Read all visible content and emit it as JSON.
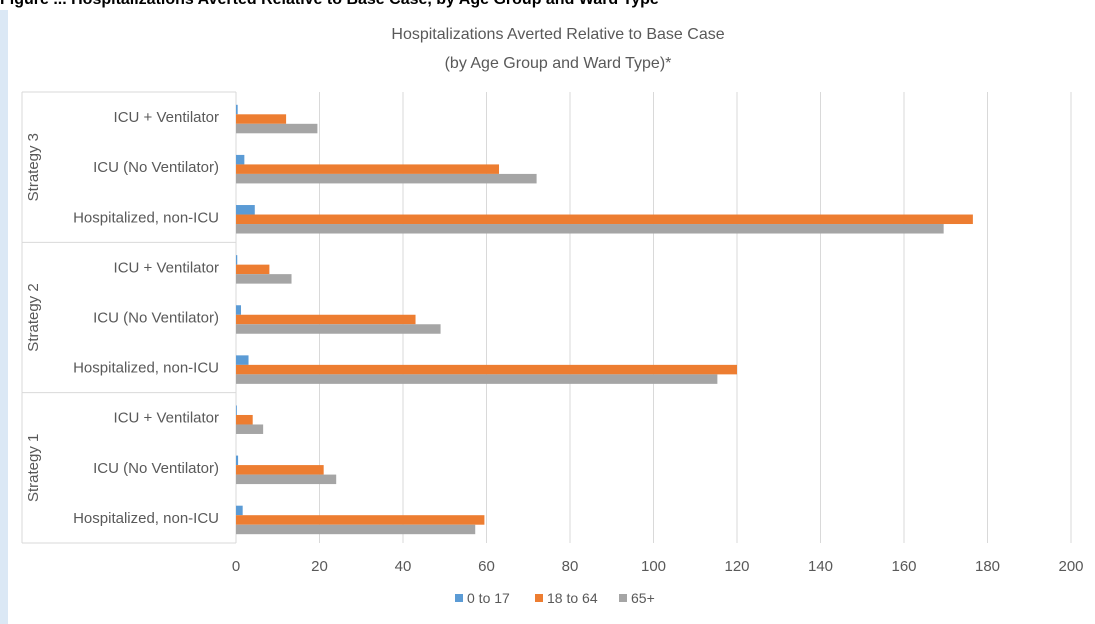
{
  "figure_caption_fragment": "Figure ... Hospitalizations Averted Relative to Base Case, by Age Group and Ward Type",
  "colors": {
    "series_0_to_17": "#5b9bd5",
    "series_18_to_64": "#ed7d31",
    "series_65_plus": "#a5a5a5",
    "grid": "#d9d9d9",
    "text": "#595959"
  },
  "chart_data": {
    "type": "bar",
    "orientation": "horizontal",
    "title": "Hospitalizations Averted Relative to Base Case",
    "subtitle": "(by Age Group and Ward Type)*",
    "xlim": [
      0,
      200
    ],
    "x_ticks": [
      0,
      20,
      40,
      60,
      80,
      100,
      120,
      140,
      160,
      180,
      200
    ],
    "grid": true,
    "legend_position": "bottom",
    "groups": [
      {
        "name": "Strategy 3",
        "categories": [
          {
            "label": "ICU + Ventilator",
            "values": [
              0.4,
              12,
              19.5
            ]
          },
          {
            "label": "ICU (No Ventilator)",
            "values": [
              2,
              63,
              72
            ]
          },
          {
            "label": "Hospitalized, non-ICU",
            "values": [
              4.5,
              176.5,
              169.5
            ]
          }
        ]
      },
      {
        "name": "Strategy 2",
        "categories": [
          {
            "label": "ICU + Ventilator",
            "values": [
              0.3,
              8,
              13.3
            ]
          },
          {
            "label": "ICU (No Ventilator)",
            "values": [
              1.2,
              43,
              49
            ]
          },
          {
            "label": "Hospitalized, non-ICU",
            "values": [
              3,
              120,
              115.3
            ]
          }
        ]
      },
      {
        "name": "Strategy 1",
        "categories": [
          {
            "label": "ICU + Ventilator",
            "values": [
              0.2,
              4,
              6.5
            ]
          },
          {
            "label": "ICU (No Ventilator)",
            "values": [
              0.5,
              21,
              24
            ]
          },
          {
            "label": "Hospitalized, non-ICU",
            "values": [
              1.6,
              59.5,
              57.3
            ]
          }
        ]
      }
    ],
    "series": [
      {
        "name": "0 to 17"
      },
      {
        "name": "18 to 64"
      },
      {
        "name": "65+"
      }
    ]
  }
}
